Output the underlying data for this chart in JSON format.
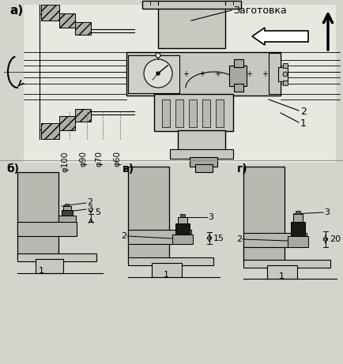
{
  "bg_color": "#d4d4cc",
  "title_a": "a)",
  "title_b": "б)",
  "title_v": "в)",
  "title_g": "г)",
  "label_zagotovka": "Заготовка",
  "dims_a": [
    "φ100",
    "φ90",
    "φ70",
    "φ60"
  ],
  "label_1": "1",
  "label_2": "2",
  "label_3": "3",
  "dim_b": "5",
  "dim_v": "15",
  "dim_g": "20",
  "white": "#ffffff",
  "light_gray": "#c8c8c0",
  "mid_gray": "#a8a8a0",
  "dark_gray": "#686860",
  "black": "#000000",
  "hatch_gray": "#b0b0a8"
}
